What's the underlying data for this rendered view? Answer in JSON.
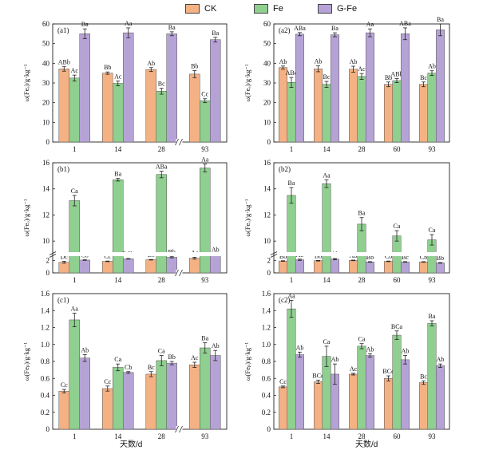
{
  "legend": {
    "items": [
      {
        "label": "CK",
        "color": "#f4b183"
      },
      {
        "label": "Fe",
        "color": "#8fcf8f"
      },
      {
        "label": "G-Fe",
        "color": "#b6a3d6"
      }
    ]
  },
  "x_title_left": "天数/d",
  "x_title_right": "天数/d",
  "chart_data": [
    {
      "id": "a1",
      "panel_label": "(a1)",
      "type": "bar",
      "ylabel": "ω(Feₐ)/g·kg⁻¹",
      "ylim": [
        0,
        60
      ],
      "yticks": [
        0,
        10,
        20,
        30,
        40,
        50,
        60
      ],
      "categories": [
        "1",
        "14",
        "28",
        "93"
      ],
      "axis_break_before": 3,
      "series": [
        {
          "name": "CK",
          "values": [
            37.2,
            35.0,
            36.8,
            34.5
          ],
          "errors": [
            1.2,
            0.6,
            1.0,
            1.8
          ],
          "labels": [
            "ABb",
            "Bb",
            "Ab",
            "Bb"
          ]
        },
        {
          "name": "Fe",
          "values": [
            32.5,
            29.8,
            25.8,
            21.0
          ],
          "errors": [
            1.5,
            1.2,
            1.5,
            1.0
          ],
          "labels": [
            "Ac",
            "Ac",
            "Bc",
            "Cc"
          ]
        },
        {
          "name": "G-Fe",
          "values": [
            55.0,
            55.5,
            55.0,
            52.0
          ],
          "errors": [
            2.5,
            2.5,
            1.0,
            1.2
          ],
          "labels": [
            "Ba",
            "Aa",
            "Ba",
            "Ba"
          ]
        }
      ]
    },
    {
      "id": "a2",
      "panel_label": "(a2)",
      "type": "bar",
      "ylabel": "ω(Feₐ)/g·kg⁻¹",
      "ylim": [
        0,
        60
      ],
      "yticks": [
        0,
        10,
        20,
        30,
        40,
        50,
        60
      ],
      "categories": [
        "1",
        "14",
        "28",
        "60",
        "93"
      ],
      "axis_break_before": null,
      "series": [
        {
          "name": "CK",
          "values": [
            37.8,
            37.2,
            37.0,
            29.3,
            29.3
          ],
          "errors": [
            0.8,
            1.5,
            1.5,
            1.2,
            1.2
          ],
          "labels": [
            "Ab",
            "Ab",
            "Ab",
            "Bb",
            "Bc"
          ]
        },
        {
          "name": "Fe",
          "values": [
            30.3,
            29.3,
            33.3,
            31.2,
            35.0
          ],
          "errors": [
            2.5,
            1.5,
            1.5,
            1.0,
            1.2
          ],
          "labels": [
            "ABc",
            "Bc",
            "Ac",
            "ABb",
            "Ab"
          ]
        },
        {
          "name": "G-Fe",
          "values": [
            54.8,
            54.5,
            55.5,
            55.0,
            57.0
          ],
          "errors": [
            0.8,
            1.0,
            2.0,
            3.0,
            3.0
          ],
          "labels": [
            "ABa",
            "Ba",
            "Aa",
            "ABa",
            "Ba"
          ]
        }
      ]
    },
    {
      "id": "b1",
      "panel_label": "(b1)",
      "type": "bar",
      "ylabel": "ω(Feₒ)/g·kg⁻¹",
      "ylim": [
        0,
        16
      ],
      "y_break": [
        3,
        9
      ],
      "yticks": [
        0,
        2,
        10,
        12,
        14,
        16
      ],
      "categories": [
        "1",
        "14",
        "28",
        "93"
      ],
      "axis_break_before": 3,
      "series": [
        {
          "name": "CK",
          "values": [
            1.7,
            1.85,
            2.1,
            2.35
          ],
          "errors": [
            0.15,
            0.05,
            0.05,
            0.15
          ],
          "labels": [
            "Dc",
            "Cc",
            "Bc",
            "Ac"
          ]
        },
        {
          "name": "Fe",
          "values": [
            13.1,
            14.7,
            15.1,
            15.6
          ],
          "errors": [
            0.4,
            0.1,
            0.25,
            0.3
          ],
          "labels": [
            "Ca",
            "Ba",
            "ABa",
            "Aa"
          ]
        },
        {
          "name": "G-Fe",
          "values": [
            2.05,
            2.25,
            2.5,
            2.9
          ],
          "errors": [
            0.05,
            0.05,
            0.1,
            0.1
          ],
          "labels": [
            "Cb",
            "BCb",
            "Bb",
            "Ab"
          ]
        }
      ]
    },
    {
      "id": "b2",
      "panel_label": "(b2)",
      "type": "bar",
      "ylabel": "ω(Feₒ)/g·kg⁻¹",
      "ylim": [
        0,
        16
      ],
      "y_break": [
        3,
        9
      ],
      "yticks": [
        0,
        2,
        10,
        12,
        14,
        16
      ],
      "categories": [
        "1",
        "14",
        "28",
        "60",
        "93"
      ],
      "axis_break_before": null,
      "series": [
        {
          "name": "CK",
          "values": [
            1.9,
            1.95,
            2.0,
            1.85,
            1.75
          ],
          "errors": [
            0.05,
            0.05,
            0.05,
            0.05,
            0.05
          ],
          "labels": [
            "Bb",
            "Bb",
            "Ab",
            "Cb",
            "Cb"
          ]
        },
        {
          "name": "Fe",
          "values": [
            13.5,
            14.4,
            11.3,
            10.4,
            10.1
          ],
          "errors": [
            0.6,
            0.3,
            0.5,
            0.4,
            0.4
          ],
          "labels": [
            "Ba",
            "Aa",
            "Ba",
            "Ca",
            "Ca"
          ]
        },
        {
          "name": "G-Fe",
          "values": [
            2.1,
            2.2,
            1.75,
            1.75,
            1.6
          ],
          "errors": [
            0.1,
            0.1,
            0.05,
            0.05,
            0.05
          ],
          "labels": [
            "Ab",
            "Ab",
            "Bb",
            "Bc",
            "Bb"
          ]
        }
      ]
    },
    {
      "id": "c1",
      "panel_label": "(c1)",
      "type": "bar",
      "ylabel": "ω(Feₚ)/g·kg⁻¹",
      "ylim": [
        0,
        1.6
      ],
      "yticks": [
        0,
        0.2,
        0.4,
        0.6,
        0.8,
        1.0,
        1.2,
        1.4,
        1.6
      ],
      "ytick_labels": [
        "0",
        "0.2",
        "0.4",
        "0.6",
        "0.8",
        "1.0",
        "1.2",
        "1.4",
        "1.6"
      ],
      "categories": [
        "1",
        "14",
        "28",
        "93"
      ],
      "axis_break_before": 3,
      "series": [
        {
          "name": "CK",
          "values": [
            0.45,
            0.48,
            0.65,
            0.76
          ],
          "errors": [
            0.02,
            0.03,
            0.03,
            0.03
          ],
          "labels": [
            "Cc",
            "Cc",
            "Bc",
            "Ac"
          ]
        },
        {
          "name": "Fe",
          "values": [
            1.29,
            0.73,
            0.81,
            0.96
          ],
          "errors": [
            0.08,
            0.04,
            0.06,
            0.06
          ],
          "labels": [
            "Aa",
            "Ca",
            "Ca",
            "Ba"
          ]
        },
        {
          "name": "G-Fe",
          "values": [
            0.84,
            0.67,
            0.78,
            0.87
          ],
          "errors": [
            0.04,
            0.01,
            0.02,
            0.06
          ],
          "labels": [
            "Ab",
            "Cb",
            "Bb",
            "Ab"
          ]
        }
      ]
    },
    {
      "id": "c2",
      "panel_label": "(c2)",
      "type": "bar",
      "ylabel": "ω(Feₚ)/g·kg⁻¹",
      "ylim": [
        0,
        1.6
      ],
      "yticks": [
        0,
        0.2,
        0.4,
        0.6,
        0.8,
        1.0,
        1.2,
        1.4,
        1.6
      ],
      "ytick_labels": [
        "0",
        "0.2",
        "0.4",
        "0.6",
        "0.8",
        "1.0",
        "1.2",
        "1.4",
        "1.6"
      ],
      "categories": [
        "1",
        "14",
        "28",
        "60",
        "93"
      ],
      "axis_break_before": null,
      "series": [
        {
          "name": "CK",
          "values": [
            0.5,
            0.56,
            0.65,
            0.6,
            0.55
          ],
          "errors": [
            0.01,
            0.02,
            0.01,
            0.03,
            0.02
          ],
          "labels": [
            "Cc",
            "BCc",
            "Ac",
            "BCc",
            "Bc"
          ]
        },
        {
          "name": "Fe",
          "values": [
            1.42,
            0.86,
            0.98,
            1.11,
            1.25
          ],
          "errors": [
            0.1,
            0.12,
            0.03,
            0.05,
            0.03
          ],
          "labels": [
            "Aa",
            "Ca",
            "Ca",
            "BCa",
            "Ba"
          ]
        },
        {
          "name": "G-Fe",
          "values": [
            0.88,
            0.65,
            0.87,
            0.82,
            0.75
          ],
          "errors": [
            0.03,
            0.12,
            0.02,
            0.05,
            0.02
          ],
          "labels": [
            "Ab",
            "Ab",
            "Ab",
            "Ab",
            "Ab"
          ]
        }
      ]
    }
  ]
}
